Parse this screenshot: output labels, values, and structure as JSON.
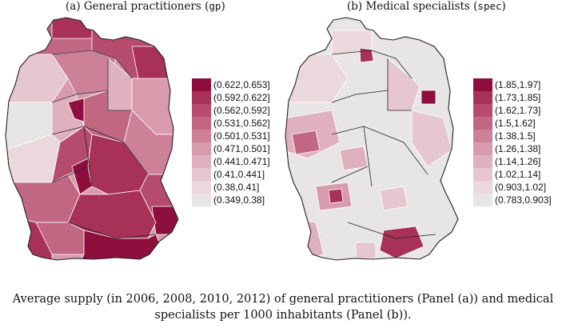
{
  "panels": [
    {
      "id": "a",
      "title": "(a) General practitioners (",
      "title_code": "gp",
      "title_end": ")",
      "legend": [
        {
          "label": "(0.622,0.653]",
          "color": "#8e0f3d"
        },
        {
          "label": "(0.592,0.622]",
          "color": "#a83158"
        },
        {
          "label": "(0.562,0.592]",
          "color": "#b54c6d"
        },
        {
          "label": "(0.531,0.562]",
          "color": "#c26782"
        },
        {
          "label": "(0.501,0.531]",
          "color": "#cd8197"
        },
        {
          "label": "(0.471,0.501]",
          "color": "#d79bac"
        },
        {
          "label": "(0.441,0.471]",
          "color": "#dfb1be"
        },
        {
          "label": "(0.41,0.441]",
          "color": "#e6c6cf"
        },
        {
          "label": "(0.38,0.41]",
          "color": "#ebd8dd"
        },
        {
          "label": "(0.349,0.38]",
          "color": "#e8e5e6"
        }
      ]
    },
    {
      "id": "b",
      "title": "(b) Medical specialists (",
      "title_code": "spec",
      "title_end": ")",
      "legend": [
        {
          "label": "(1.85,1.97]",
          "color": "#8e0f3d"
        },
        {
          "label": "(1.73,1.85]",
          "color": "#a83158"
        },
        {
          "label": "(1.62,1.73]",
          "color": "#b54c6d"
        },
        {
          "label": "(1.5,1.62]",
          "color": "#c26782"
        },
        {
          "label": "(1.38,1.5]",
          "color": "#cd8197"
        },
        {
          "label": "(1.26,1.38]",
          "color": "#d79bac"
        },
        {
          "label": "(1.14,1.26]",
          "color": "#dfb1be"
        },
        {
          "label": "(1.02,1.14]",
          "color": "#e6c6cf"
        },
        {
          "label": "(0.903,1.02]",
          "color": "#ebd8dd"
        },
        {
          "label": "(0.783,0.903]",
          "color": "#e8e5e6"
        }
      ]
    }
  ],
  "caption": {
    "line1": "Average supply (in 2006, 2008, 2010, 2012) of general practitioners (Panel (a)) and medical",
    "line2": "specialists per 1000 inhabitants (Panel (b))."
  }
}
